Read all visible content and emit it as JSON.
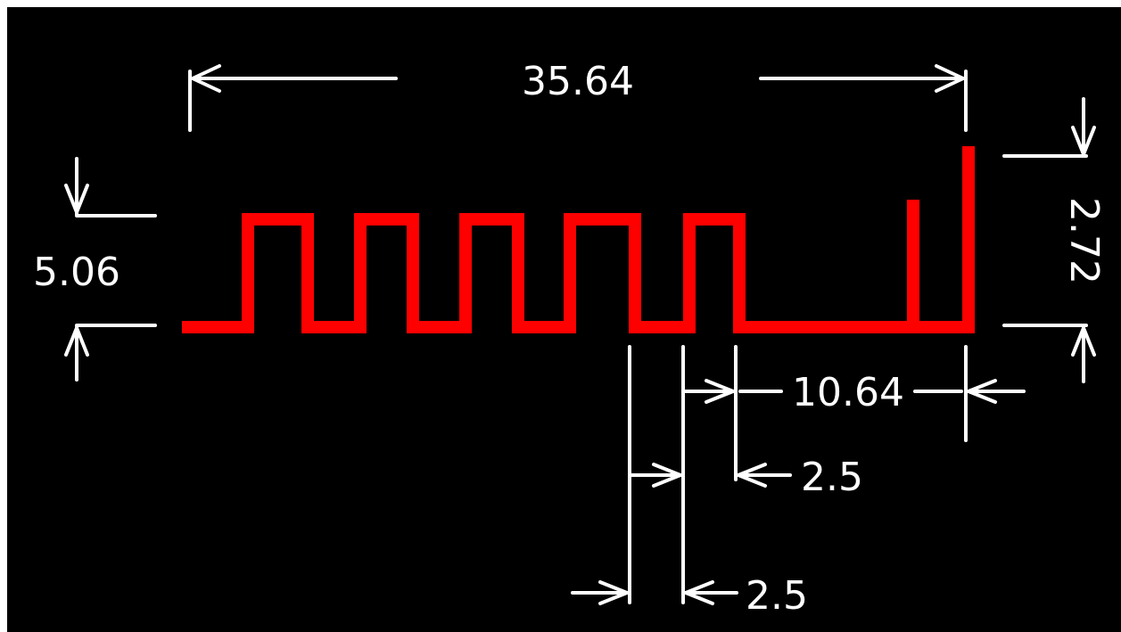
{
  "colors": {
    "background": "#000000",
    "trace": "#ff0000",
    "dimension": "#ffffff"
  },
  "dimensions": {
    "overall_length": "35.64",
    "height": "5.06",
    "right_height": "2.72",
    "tail_length": "10.64",
    "gap": "2.5",
    "trace_width": "2.5"
  }
}
